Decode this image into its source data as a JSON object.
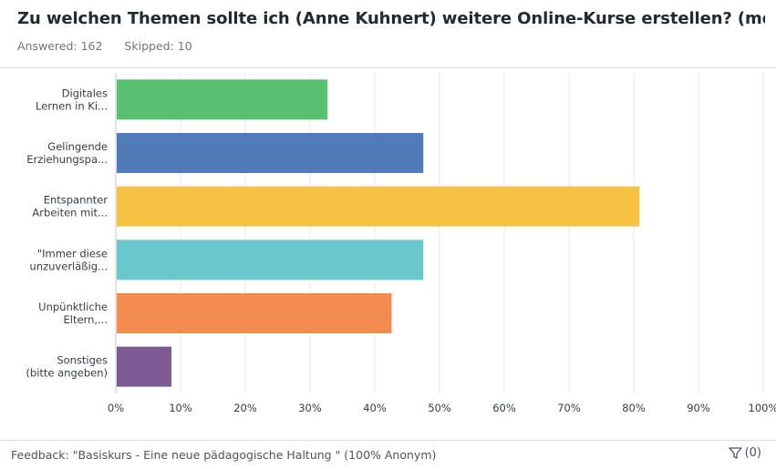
{
  "header": {
    "title": "Zu welchen Themen sollte ich (Anne Kuhnert) weitere Online-Kurse erstellen? (mehrere Antw...",
    "answered": "Answered: 162",
    "skipped": "Skipped: 10"
  },
  "chart_data": {
    "type": "bar",
    "orientation": "horizontal",
    "categories": [
      [
        "Digitales",
        "Lernen in Ki..."
      ],
      [
        "Gelingende",
        "Erziehungspa..."
      ],
      [
        "Entspannter",
        "Arbeiten mit..."
      ],
      [
        "\"Immer diese",
        "unzuverläßig..."
      ],
      [
        "Unpünktliche",
        "Eltern,..."
      ],
      [
        "Sonstiges",
        "(bitte angeben)"
      ]
    ],
    "values": [
      32.7,
      47.5,
      80.9,
      47.5,
      42.6,
      8.6
    ],
    "colors": [
      "#58c06f",
      "#507bb8",
      "#f6c244",
      "#6ac7cb",
      "#f28b50",
      "#7d5b92"
    ],
    "xlim": [
      0,
      100
    ],
    "ticks": [
      "0%",
      "10%",
      "20%",
      "30%",
      "40%",
      "50%",
      "60%",
      "70%",
      "80%",
      "90%",
      "100%"
    ],
    "grid": true
  },
  "footer": {
    "feedback": "Feedback: \"Basiskurs - Eine neue pädagogische Haltung \" (100% Anonym)",
    "filter_count": "(0)",
    "filter_icon": "filter-icon"
  }
}
